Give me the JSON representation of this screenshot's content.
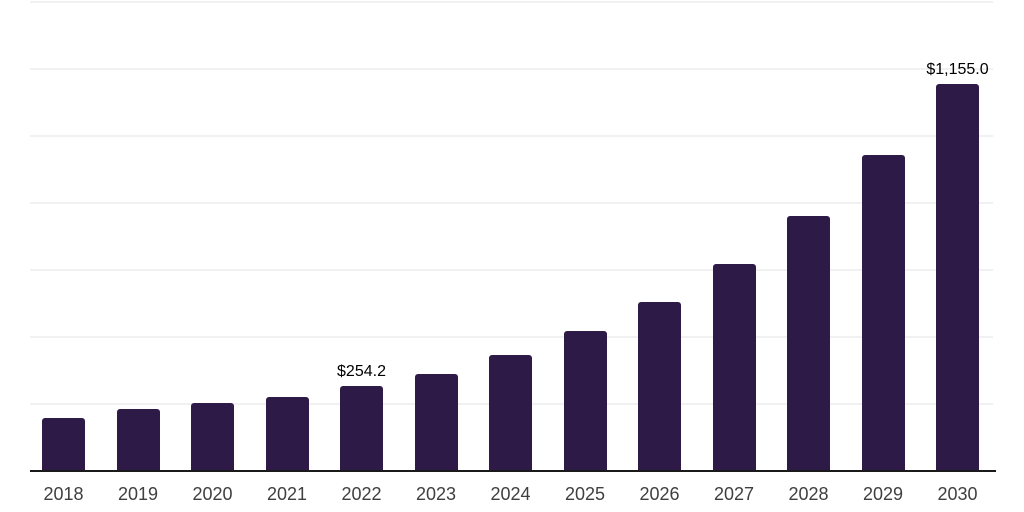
{
  "chart_data": {
    "type": "bar",
    "title": "",
    "categories": [
      "2018",
      "2019",
      "2020",
      "2021",
      "2022",
      "2023",
      "2024",
      "2025",
      "2026",
      "2027",
      "2028",
      "2029",
      "2030"
    ],
    "values": [
      158,
      186,
      203,
      221,
      254.2,
      290,
      347,
      419,
      506,
      619,
      760,
      942,
      1155.0
    ],
    "bar_labels": [
      "",
      "",
      "",
      "",
      "$254.2",
      "",
      "",
      "",
      "",
      "",
      "",
      "",
      "$1,155.0"
    ],
    "labeled_points": [
      {
        "category": "2022",
        "label": "$254.2",
        "value": 254.2
      },
      {
        "category": "2030",
        "label": "$1,155.0",
        "value": 1155.0
      }
    ],
    "xlabel": "",
    "ylabel": "",
    "ylim": [
      0,
      1400
    ],
    "gridline_step": 200,
    "grid": "horizontal",
    "y_tick_labels_visible": false,
    "legend_position": "none",
    "colors": {
      "bar": "#2e1a47",
      "axis": "#1a1a1a",
      "gridline": "#f1f1f1",
      "value_label": "#000000",
      "tick_label": "#3f3f3f",
      "background": "#ffffff"
    }
  }
}
